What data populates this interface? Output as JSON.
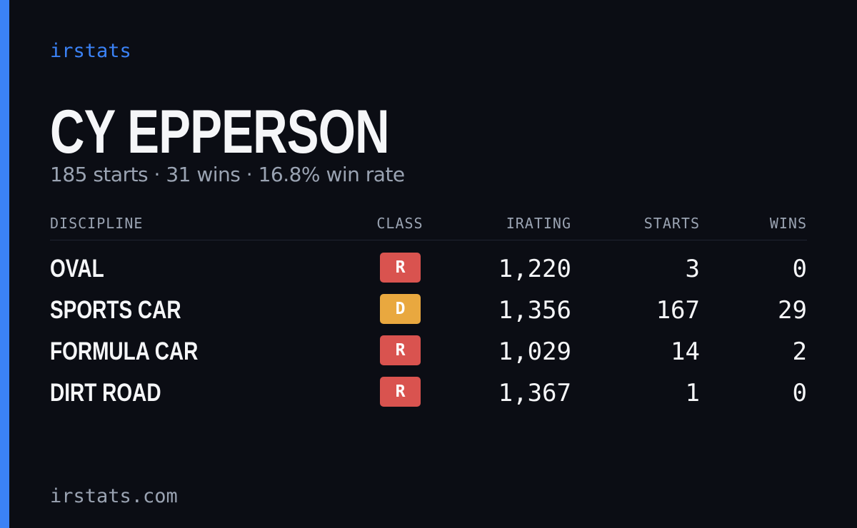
{
  "brand": "irstats",
  "driver": {
    "name": "CY EPPERSON",
    "summary": "185 starts · 31 wins · 16.8% win rate"
  },
  "table": {
    "headers": [
      "DISCIPLINE",
      "CLASS",
      "IRATING",
      "STARTS",
      "WINS"
    ],
    "rows": [
      {
        "discipline": "OVAL",
        "class": "R",
        "class_color": "#d9534f",
        "irating": "1,220",
        "starts": "3",
        "wins": "0"
      },
      {
        "discipline": "SPORTS CAR",
        "class": "D",
        "class_color": "#e9a83f",
        "irating": "1,356",
        "starts": "167",
        "wins": "29"
      },
      {
        "discipline": "FORMULA CAR",
        "class": "R",
        "class_color": "#d9534f",
        "irating": "1,029",
        "starts": "14",
        "wins": "2"
      },
      {
        "discipline": "DIRT ROAD",
        "class": "R",
        "class_color": "#d9534f",
        "irating": "1,367",
        "starts": "1",
        "wins": "0"
      }
    ]
  },
  "footer": "irstats.com"
}
